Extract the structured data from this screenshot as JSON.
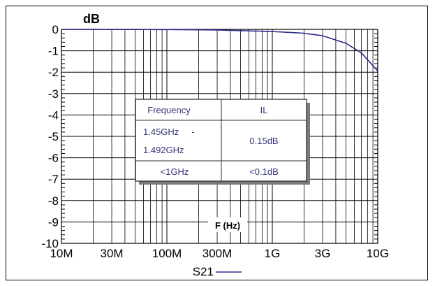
{
  "chart_data": {
    "type": "line",
    "title": "",
    "ylabel": "dB",
    "xlabel": "F (Hz)",
    "x_scale": "log",
    "xlim": [
      "10M",
      "10G"
    ],
    "ylim": [
      -10,
      0
    ],
    "x_tick_labels": [
      "10M",
      "30M",
      "100M",
      "300M",
      "1G",
      "3G",
      "10G"
    ],
    "y_tick_labels": [
      "0",
      "-1",
      "-2",
      "-3",
      "-4",
      "-5",
      "-6",
      "-7",
      "-8",
      "-9",
      "-10"
    ],
    "grid": true,
    "legend_position": "bottom-center",
    "series": [
      {
        "name": "S21",
        "color": "#2b2b8a",
        "x": [
          "10M",
          "100M",
          "300M",
          "1G",
          "2G",
          "3G",
          "5G",
          "7G",
          "10G"
        ],
        "y": [
          0,
          -0.01,
          -0.03,
          -0.1,
          -0.18,
          -0.3,
          -0.65,
          -1.1,
          -1.95
        ]
      }
    ],
    "table": {
      "headers": [
        "Frequency",
        "IL"
      ],
      "rows": [
        {
          "frequency": [
            "1.45GHz     -",
            "1.492GHz"
          ],
          "il": "0.15dB"
        },
        {
          "frequency": [
            "<1GHz"
          ],
          "il": "<0.1dB"
        }
      ]
    }
  }
}
